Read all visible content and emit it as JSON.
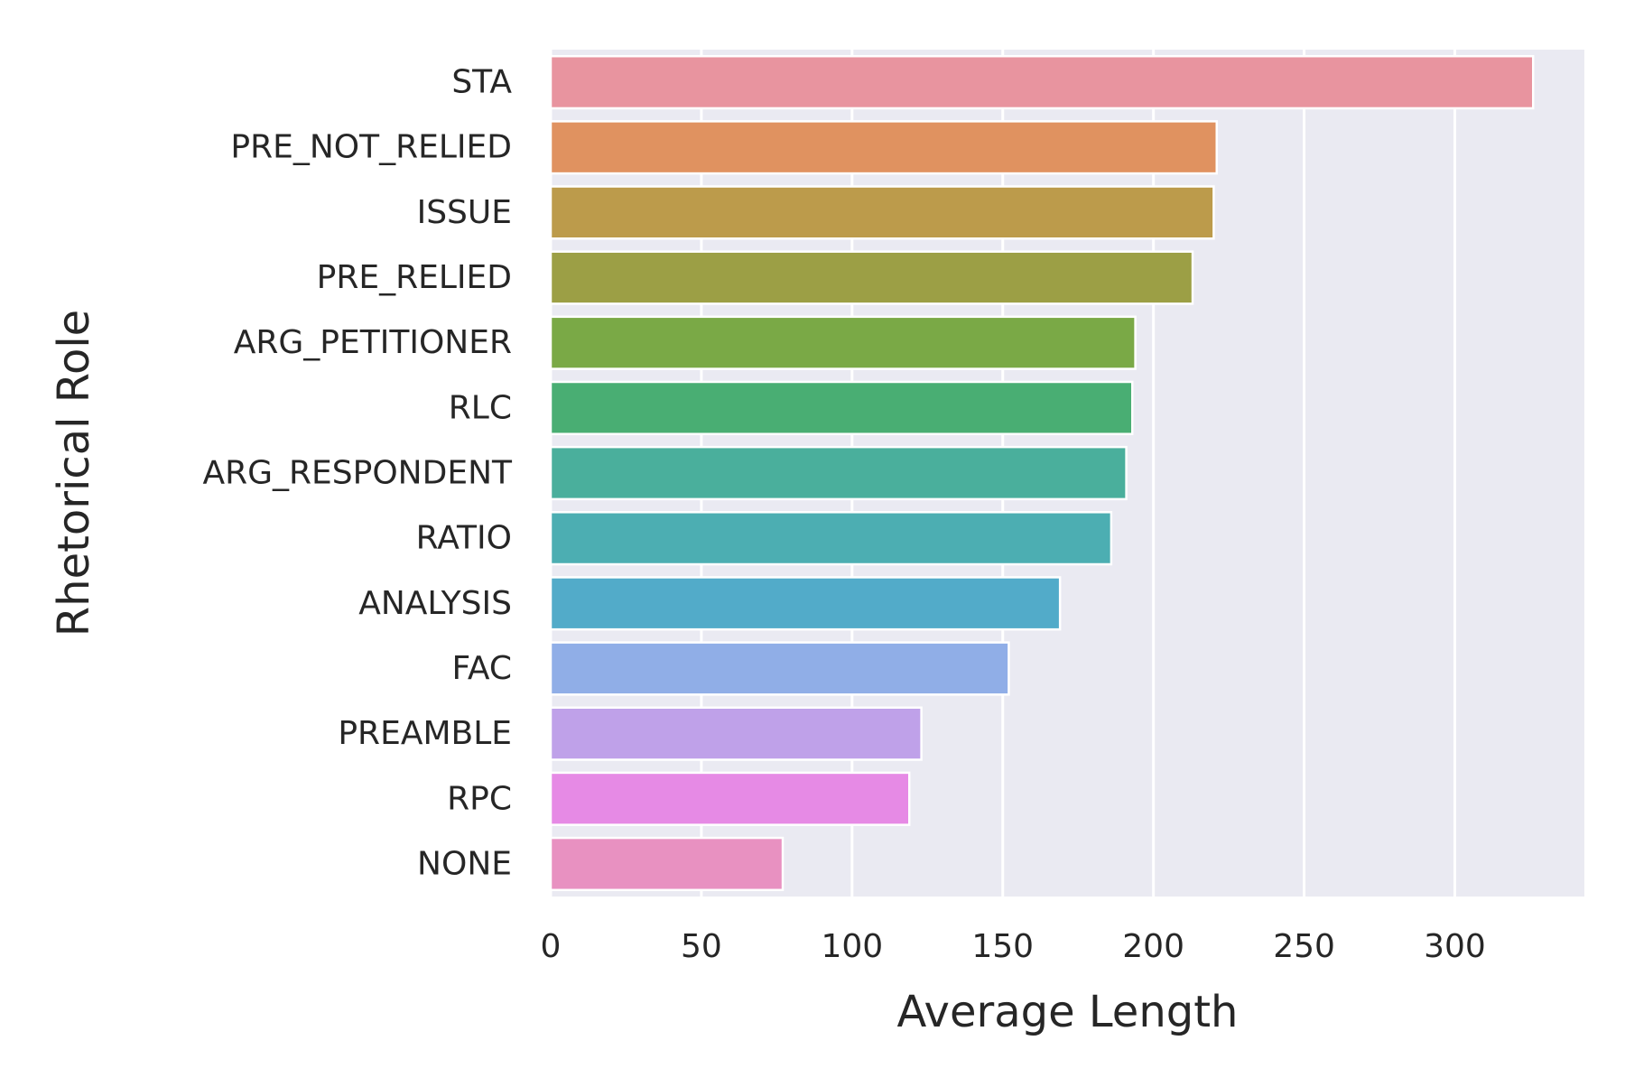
{
  "chart_data": {
    "type": "bar",
    "orientation": "horizontal",
    "title": "",
    "xlabel": "Average Length",
    "ylabel": "Rhetorical Role",
    "xlim": [
      0,
      343
    ],
    "x_ticks": [
      0,
      50,
      100,
      150,
      200,
      250,
      300
    ],
    "grid": true,
    "legend": "none",
    "background_color": "#eaeaf2",
    "grid_color": "#ffffff",
    "categories": [
      "STA",
      "PRE_NOT_RELIED",
      "ISSUE",
      "PRE_RELIED",
      "ARG_PETITIONER",
      "RLC",
      "ARG_RESPONDENT",
      "RATIO",
      "ANALYSIS",
      "FAC",
      "PREAMBLE",
      "RPC",
      "NONE"
    ],
    "values": [
      326,
      221,
      220,
      213,
      194,
      193,
      191,
      186,
      169,
      152,
      123,
      119,
      77
    ],
    "colors": [
      "#e8949f",
      "#e09260",
      "#bc9b4b",
      "#9c9f45",
      "#7aa946",
      "#49ae73",
      "#4aaf9c",
      "#4caeb2",
      "#52abc9",
      "#90aee7",
      "#bfa1e9",
      "#e68ae5",
      "#e891c1"
    ]
  }
}
